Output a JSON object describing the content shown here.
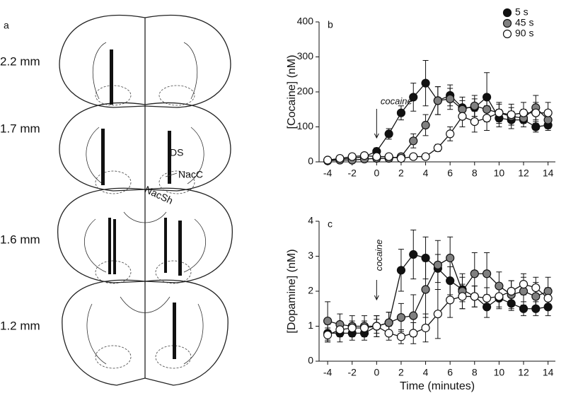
{
  "panel_a": {
    "label": "a",
    "sections": [
      "2.2 mm",
      "1.7 mm",
      "1.6 mm",
      "1.2 mm"
    ],
    "regions": [
      "DS",
      "NacC",
      "NacSh"
    ]
  },
  "chart_data": [
    {
      "type": "line",
      "panel": "b",
      "y_label": "[Cocaine] (nM)",
      "annotation": "cocaine",
      "x": [
        -4,
        -3,
        -2,
        -1,
        0,
        1,
        2,
        3,
        4,
        5,
        6,
        7,
        8,
        9,
        10,
        11,
        12,
        13,
        14
      ],
      "xlim": [
        -4.7,
        14.6
      ],
      "xticks": [
        -4,
        -2,
        0,
        2,
        4,
        6,
        8,
        10,
        12,
        14
      ],
      "ylim": [
        0,
        400
      ],
      "yticks": [
        0,
        100,
        200,
        300,
        400
      ],
      "legend": "upper right",
      "series": [
        {
          "name": "5 s",
          "color": "#111111",
          "values": [
            5,
            8,
            10,
            15,
            30,
            80,
            140,
            185,
            225,
            175,
            190,
            155,
            155,
            185,
            125,
            120,
            120,
            100,
            105
          ],
          "errors": [
            3,
            4,
            5,
            5,
            10,
            15,
            20,
            40,
            65,
            40,
            30,
            30,
            25,
            70,
            25,
            25,
            20,
            15,
            15
          ]
        },
        {
          "name": "45 s",
          "color": "#808080",
          "values": [
            3,
            5,
            5,
            8,
            10,
            10,
            15,
            60,
            105,
            175,
            180,
            150,
            160,
            150,
            140,
            130,
            125,
            155,
            120
          ],
          "errors": [
            3,
            3,
            3,
            4,
            5,
            5,
            8,
            20,
            30,
            40,
            30,
            25,
            30,
            30,
            25,
            25,
            25,
            35,
            25
          ]
        },
        {
          "name": "90 s",
          "color": "#ffffff",
          "values": [
            5,
            10,
            15,
            18,
            15,
            15,
            10,
            15,
            15,
            40,
            80,
            130,
            115,
            125,
            140,
            135,
            140,
            140,
            140
          ],
          "errors": [
            3,
            4,
            5,
            5,
            5,
            5,
            5,
            5,
            5,
            10,
            20,
            30,
            30,
            35,
            30,
            30,
            30,
            30,
            30
          ]
        }
      ]
    },
    {
      "type": "line",
      "panel": "c",
      "y_label": "[Dopamine] (nM)",
      "x_label": "Time (minutes)",
      "annotation": "cocaine",
      "x": [
        -4,
        -3,
        -2,
        -1,
        0,
        1,
        2,
        3,
        4,
        5,
        6,
        7,
        8,
        9,
        10,
        11,
        12,
        13,
        14
      ],
      "xlim": [
        -4.7,
        14.6
      ],
      "xticks": [
        -4,
        -2,
        0,
        2,
        4,
        6,
        8,
        10,
        12,
        14
      ],
      "ylim": [
        0,
        4
      ],
      "yticks": [
        0,
        1,
        2,
        3,
        4
      ],
      "series": [
        {
          "color": "#111111",
          "values": [
            0.8,
            0.8,
            0.8,
            0.8,
            1.0,
            1.1,
            2.6,
            3.05,
            2.95,
            2.65,
            2.3,
            2.05,
            1.85,
            1.55,
            1.8,
            1.65,
            1.5,
            1.5,
            1.55
          ],
          "errors": [
            0.25,
            0.25,
            0.2,
            0.2,
            0.3,
            0.3,
            0.6,
            0.7,
            0.6,
            0.4,
            0.4,
            0.35,
            0.3,
            0.3,
            0.3,
            0.2,
            0.2,
            0.2,
            0.25
          ]
        },
        {
          "color": "#808080",
          "values": [
            1.15,
            1.05,
            1.0,
            1.0,
            1.0,
            1.1,
            1.25,
            1.3,
            2.05,
            2.75,
            2.95,
            2.0,
            2.5,
            2.5,
            2.15,
            1.9,
            2.0,
            1.85,
            2.0
          ],
          "errors": [
            0.55,
            0.3,
            0.3,
            0.3,
            0.3,
            0.3,
            0.4,
            0.6,
            0.8,
            0.7,
            0.6,
            0.5,
            0.6,
            0.6,
            0.4,
            0.4,
            0.4,
            0.4,
            0.4
          ]
        },
        {
          "color": "#ffffff",
          "values": [
            0.75,
            0.9,
            0.95,
            0.95,
            1.0,
            0.8,
            0.7,
            0.8,
            0.95,
            1.35,
            1.75,
            1.85,
            1.85,
            1.8,
            1.85,
            2.0,
            2.2,
            2.1,
            1.8
          ],
          "errors": [
            0.2,
            0.2,
            0.2,
            0.2,
            0.2,
            0.2,
            0.2,
            0.3,
            0.4,
            0.7,
            0.5,
            0.35,
            0.3,
            0.3,
            0.3,
            0.3,
            0.3,
            0.3,
            0.3
          ]
        }
      ]
    }
  ]
}
